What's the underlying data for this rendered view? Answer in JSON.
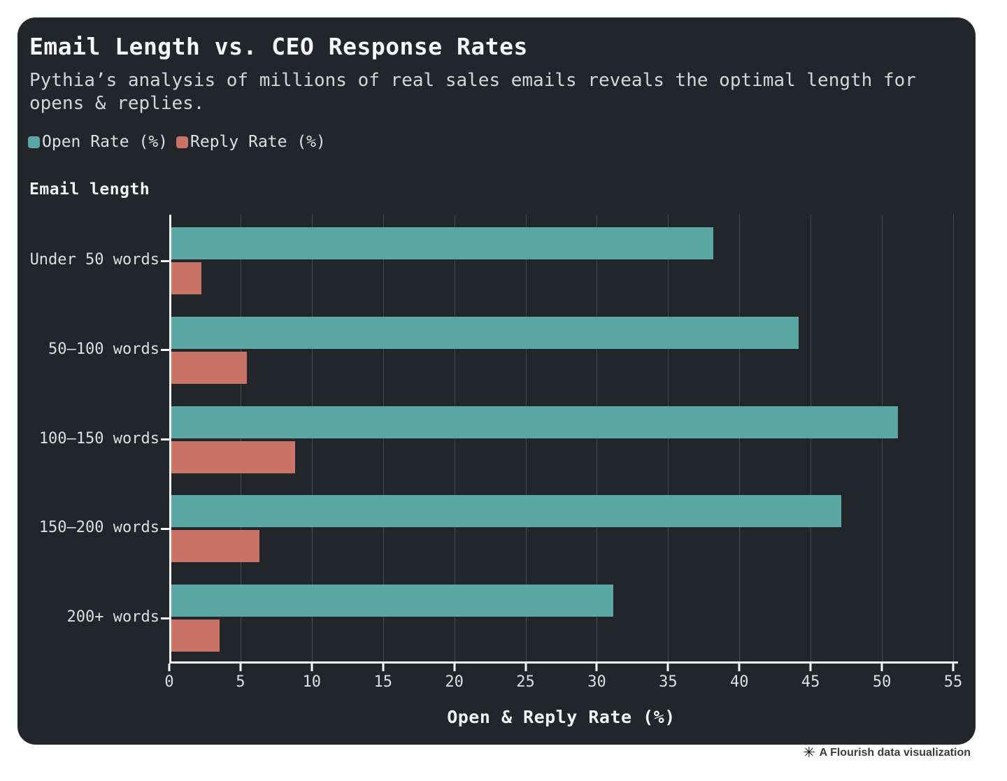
{
  "header": {
    "title": "Email Length vs. CEO Response Rates",
    "subtitle": "Pythia’s analysis of millions of real sales emails reveals the optimal length for opens & replies."
  },
  "legend": [
    {
      "label": "Open Rate (%)",
      "color": "#5ba7a4"
    },
    {
      "label": "Reply Rate (%)",
      "color": "#c97466"
    }
  ],
  "chart_data": {
    "type": "bar",
    "orientation": "horizontal",
    "title": "Email Length vs. CEO Response Rates",
    "categories": [
      "Under 50 words",
      "50–100 words",
      "100–150 words",
      "150–200 words",
      "200+ words"
    ],
    "series": [
      {
        "name": "Open Rate (%)",
        "color": "#5ba7a4",
        "values": [
          38,
          44,
          51,
          47,
          31
        ]
      },
      {
        "name": "Reply Rate (%)",
        "color": "#c97466",
        "values": [
          2.1,
          5.3,
          8.7,
          6.2,
          3.4
        ]
      }
    ],
    "xlabel": "Open & Reply Rate (%)",
    "ylabel": "Email length",
    "xlim": [
      0,
      55
    ],
    "xticks": [
      0,
      5,
      10,
      15,
      20,
      25,
      30,
      35,
      40,
      45,
      50,
      55
    ],
    "grid": true,
    "legend_position": "top-left"
  },
  "colors": {
    "card_background": "#22252a",
    "page_background": "#ffffff",
    "axis": "#f5f5f5",
    "text_primary": "#f8f8f8",
    "text_secondary": "#d5d6d7"
  },
  "footer": {
    "icon": "✳",
    "text": "A Flourish data visualization"
  }
}
